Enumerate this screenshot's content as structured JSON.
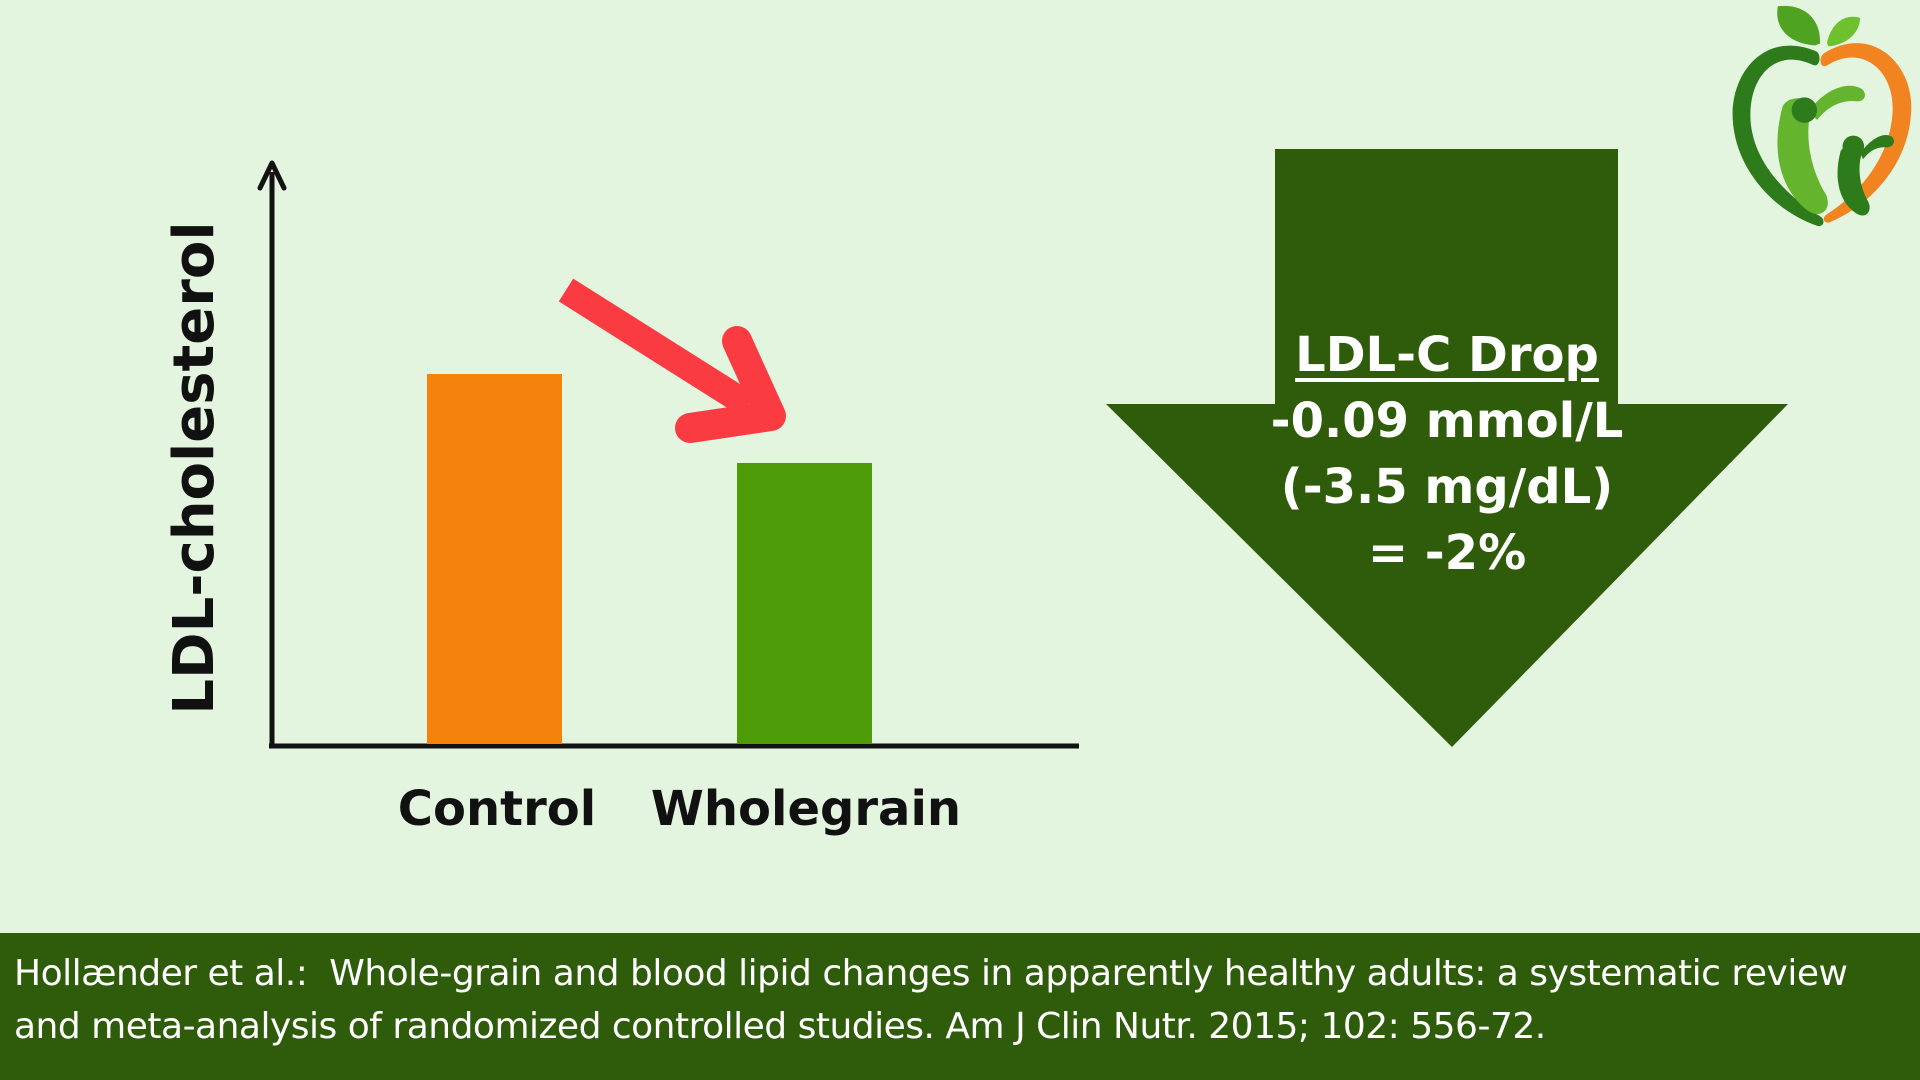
{
  "chart_data": {
    "type": "bar",
    "categories": [
      "Control",
      "Wholegrain"
    ],
    "values": [
      100,
      76
    ],
    "bar_colors": [
      "#F5820B",
      "#4D9B06"
    ],
    "title": "",
    "xlabel": "",
    "ylabel": "LDL-cholesterol",
    "ylim": [
      0,
      100
    ],
    "grid": false,
    "legend": false,
    "axis_note": "no numeric ticks; qualitative comparison with red down-trend arrow between bars",
    "annotations": [
      "LDL-C Drop",
      "-0.09 mmol/L",
      "(-3.5 mg/dL)",
      "= -2%"
    ]
  },
  "chart": {
    "y_axis_label": "LDL-cholesterol"
  },
  "callout": {
    "title": "LDL-C Drop",
    "lines": [
      "-0.09 mmol/L",
      "(-3.5 mg/dL)",
      "= -2%"
    ],
    "arrow_color": "#2E5C0A",
    "text_color": "#FFFFFF"
  },
  "citation": {
    "line1": "Hollænder et al.:  Whole-grain and blood lipid changes in apparently healthy adults: a systematic review",
    "line2": "and meta-analysis of randomized controlled studies. Am J Clin Nutr. 2015; 102: 556-72.",
    "bar_color": "#2E5C0A"
  },
  "colors": {
    "background": "#E3F4DF",
    "axis": "#121212",
    "trend_arrow_red": "#FA3C42",
    "control_bar_orange": "#F5820B",
    "wholegrain_bar_green": "#4D9B06",
    "dark_green": "#2E5C0A"
  },
  "logo": {
    "name": "apple-people-nutrition-logo"
  }
}
